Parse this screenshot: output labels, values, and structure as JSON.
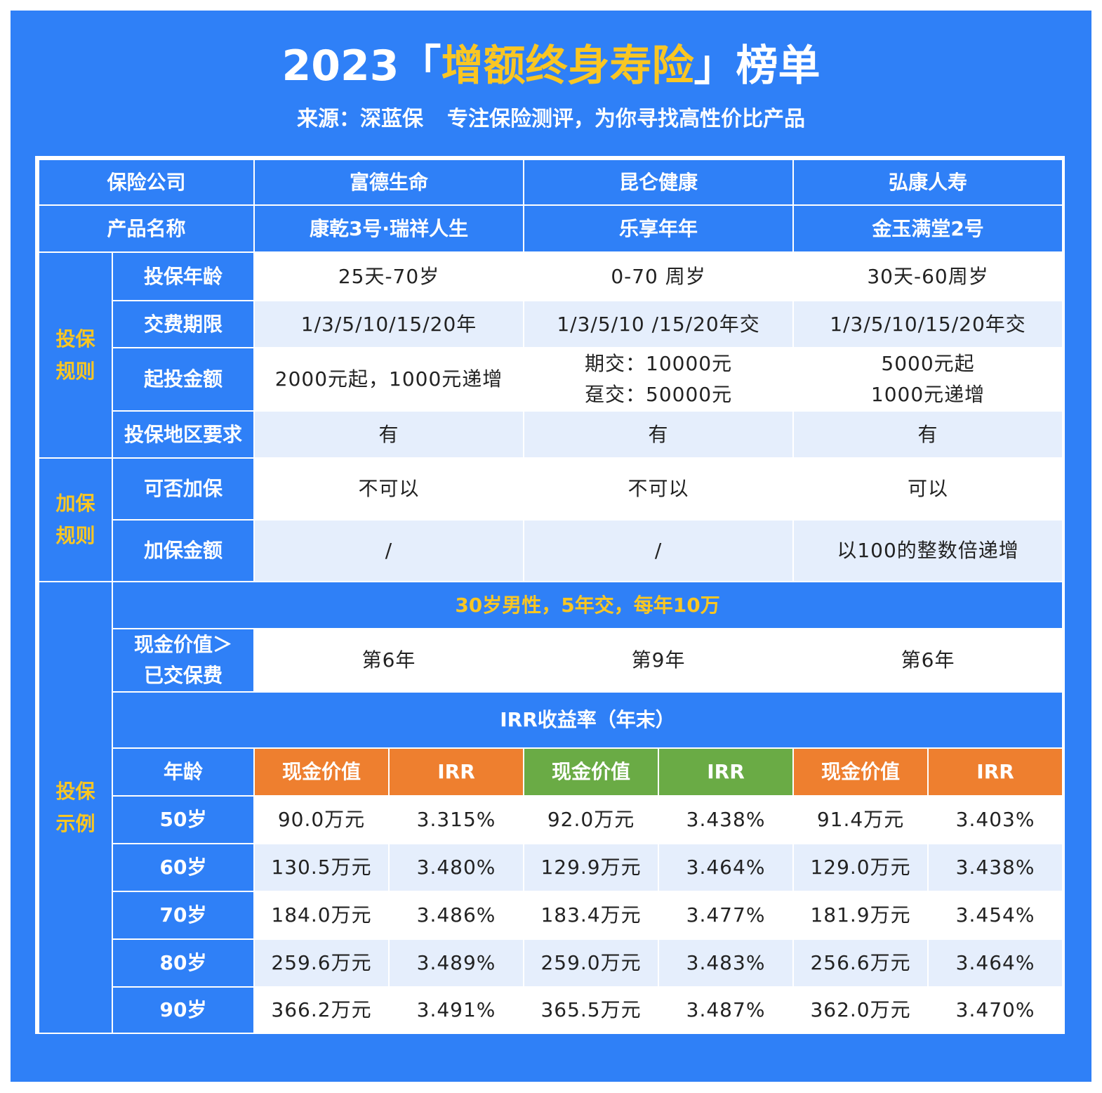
{
  "header": {
    "title": {
      "prefix": "2023「",
      "highlight": "增额终身寿险",
      "suffix": "」榜单"
    },
    "source": "来源：深蓝保",
    "tagline": "专注保险测评，为你寻找高性价比产品"
  },
  "table": {
    "rows": [
      {
        "label": "保险公司",
        "values": [
          "富德生命",
          "昆仑健康",
          "弘康人寿"
        ]
      },
      {
        "label": "产品名称",
        "values": [
          "康乾3号·瑞祥人生",
          "乐享年年",
          "金玉满堂2号"
        ]
      }
    ],
    "groups": [
      {
        "label": "投保规则",
        "rows": [
          {
            "label": "投保年龄",
            "values": [
              "25天-70岁",
              "0-70 周岁",
              "30天-60周岁"
            ]
          },
          {
            "label": "交费期限",
            "values": [
              "1/3/5/10/15/20年",
              "1/3/5/10 /15/20年交",
              "1/3/5/10/15/20年交"
            ]
          },
          {
            "label": "起投金额",
            "values": [
              [
                "2000元起，1000元递增"
              ],
              [
                "期交：10000元",
                "趸交：50000元"
              ],
              [
                "5000元起",
                "1000元递增"
              ]
            ]
          },
          {
            "label": "投保地区要求",
            "values": [
              "有",
              "有",
              "有"
            ]
          }
        ]
      },
      {
        "label": "加保规则",
        "rows": [
          {
            "label": "可否加保",
            "values": [
              "不可以",
              "不可以",
              "可以"
            ]
          },
          {
            "label": "加保金额",
            "values": [
              "/",
              "/",
              "以100的整数倍递增"
            ]
          }
        ]
      }
    ],
    "example": {
      "label": "投保示例",
      "scenario": "30岁男性，5年交，每年10万",
      "breakeven": {
        "label": [
          "现金价值＞",
          "已交保费"
        ],
        "values": [
          "第6年",
          "第9年",
          "第6年"
        ]
      },
      "irr_title": "IRR收益率（年末）",
      "columns": {
        "age": "年龄",
        "pairs": [
          [
            "现金价值",
            "IRR"
          ],
          [
            "现金价值",
            "IRR"
          ],
          [
            "现金价值",
            "IRR"
          ]
        ]
      },
      "rows": [
        {
          "age": "50岁",
          "values": [
            "90.0万元",
            "3.315%",
            "92.0万元",
            "3.438%",
            "91.4万元",
            "3.403%"
          ]
        },
        {
          "age": "60岁",
          "values": [
            "130.5万元",
            "3.480%",
            "129.9万元",
            "3.464%",
            "129.0万元",
            "3.438%"
          ]
        },
        {
          "age": "70岁",
          "values": [
            "184.0万元",
            "3.486%",
            "183.4万元",
            "3.477%",
            "181.9万元",
            "3.454%"
          ]
        },
        {
          "age": "80岁",
          "values": [
            "259.6万元",
            "3.489%",
            "259.0万元",
            "3.483%",
            "256.6万元",
            "3.464%"
          ]
        },
        {
          "age": "90岁",
          "values": [
            "366.2万元",
            "3.491%",
            "365.5万元",
            "3.487%",
            "362.0万元",
            "3.470%"
          ]
        }
      ]
    }
  }
}
